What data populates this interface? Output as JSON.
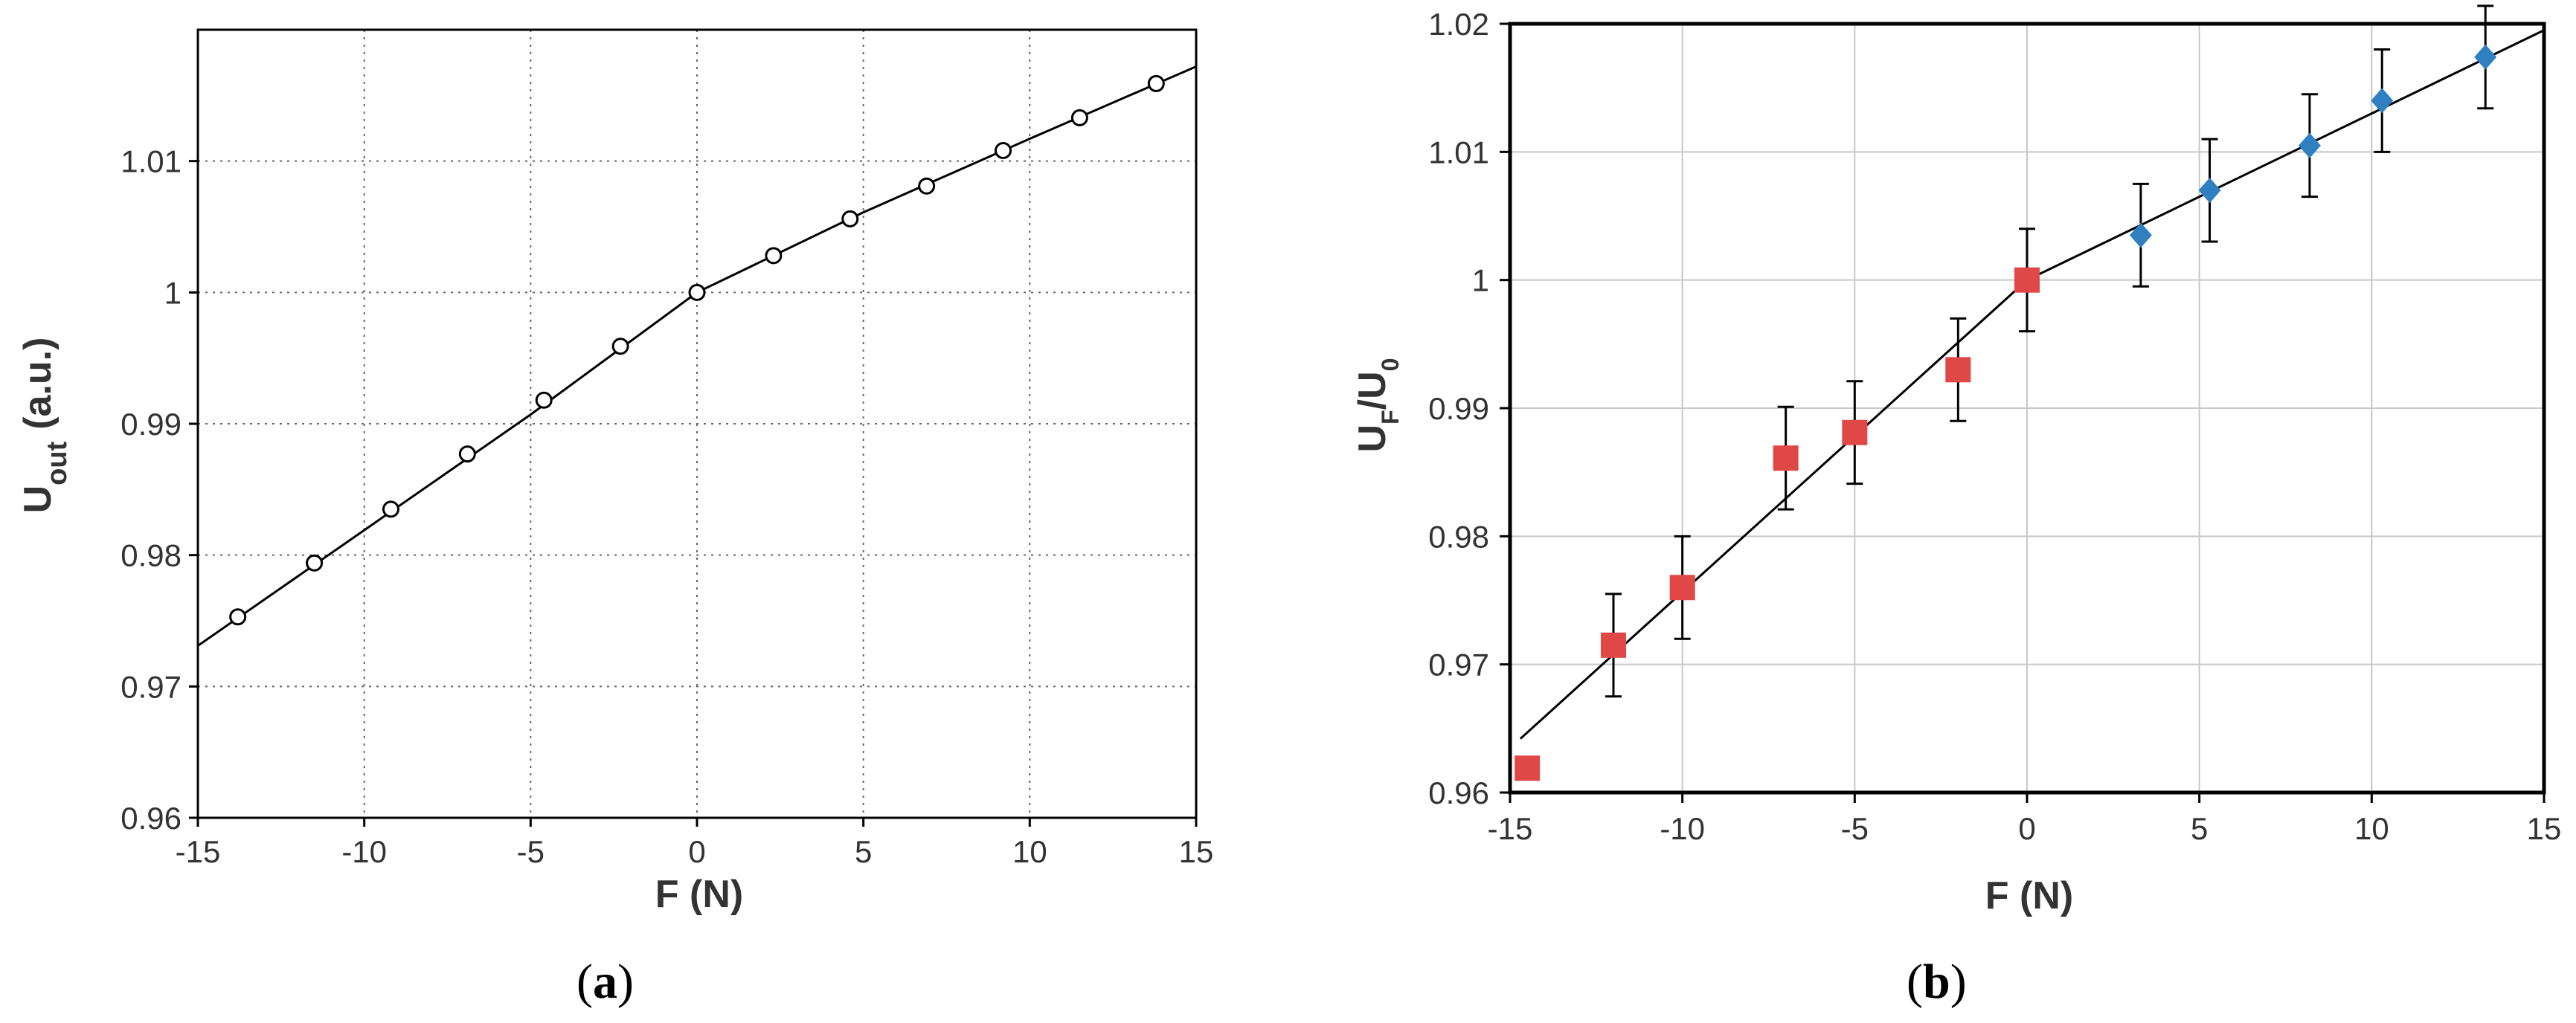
{
  "panels": [
    {
      "label_open": "(",
      "label_letter": "a",
      "label_close": ")"
    },
    {
      "label_open": "(",
      "label_letter": "b",
      "label_close": ")"
    }
  ],
  "chart_data": [
    {
      "type": "line",
      "xlabel": "F (N)",
      "ylabel_main": "U",
      "ylabel_sub": "out",
      "ylabel_suffix": "(a.u.)",
      "xlim": [
        -15,
        15
      ],
      "ylim": [
        0.96,
        1.02
      ],
      "xticks": [
        -15,
        -10,
        -5,
        0,
        5,
        10,
        15
      ],
      "xtick_labels": [
        "-15",
        "-10",
        "-5",
        "0",
        "5",
        "10",
        "15"
      ],
      "yticks": [
        0.96,
        0.97,
        0.98,
        0.99,
        1.0,
        1.01
      ],
      "ytick_labels": [
        "0.96",
        "0.97",
        "0.98",
        "0.99",
        "1",
        "1.01"
      ],
      "grid": true,
      "grid_style": "dotted",
      "line": {
        "x": [
          -15,
          -10,
          -5,
          0,
          5,
          10,
          15
        ],
        "y": [
          0.9731,
          0.9819,
          0.9907,
          1.0,
          1.0061,
          1.0117,
          1.0172
        ]
      },
      "series": [
        {
          "marker": "open-circle",
          "color": "#000000",
          "x": [
            -13.8,
            -11.5,
            -9.2,
            -6.9,
            -4.6,
            -2.3,
            0,
            2.3,
            4.6,
            6.9,
            9.2,
            11.5,
            13.8
          ],
          "y": [
            0.9753,
            0.9794,
            0.9835,
            0.9877,
            0.9918,
            0.9959,
            1.0,
            1.0028,
            1.0056,
            1.0081,
            1.0108,
            1.0133,
            1.0159
          ]
        }
      ]
    },
    {
      "type": "scatter",
      "xlabel": "F (N)",
      "ylabel_main": "U",
      "ylabel_sub1": "F",
      "ylabel_mid": "/U",
      "ylabel_sub2": "0",
      "xlim": [
        -15,
        15
      ],
      "ylim": [
        0.96,
        1.02
      ],
      "xticks": [
        -15,
        -10,
        -5,
        0,
        5,
        10,
        15
      ],
      "xtick_labels": [
        "-15",
        "-10",
        "-5",
        "0",
        "5",
        "10",
        "15"
      ],
      "yticks": [
        0.96,
        0.97,
        0.98,
        0.99,
        1.0,
        1.01,
        1.02
      ],
      "ytick_labels": [
        "0.96",
        "0.97",
        "0.98",
        "0.99",
        "1",
        "1.01",
        "1.02"
      ],
      "grid": true,
      "grid_style": "solid",
      "line": {
        "x": [
          -14.7,
          0,
          15
        ],
        "y": [
          0.9642,
          1.0,
          1.0195
        ]
      },
      "series": [
        {
          "marker": "square",
          "color": "#e04848",
          "x": [
            -14.5,
            -12,
            -10,
            -7,
            -5,
            -2,
            0
          ],
          "y": [
            0.9619,
            0.9715,
            0.976,
            0.9861,
            0.9881,
            0.993,
            1.0
          ],
          "err": [
            0,
            0.004,
            0.004,
            0.004,
            0.004,
            0.004,
            0.004
          ]
        },
        {
          "marker": "diamond",
          "color": "#2f7fc1",
          "x": [
            3.3,
            5.3,
            8.2,
            10.3,
            13.3
          ],
          "y": [
            1.0035,
            1.007,
            1.0105,
            1.014,
            1.0174
          ],
          "err": [
            0.004,
            0.004,
            0.004,
            0.004,
            0.004
          ]
        }
      ]
    }
  ]
}
